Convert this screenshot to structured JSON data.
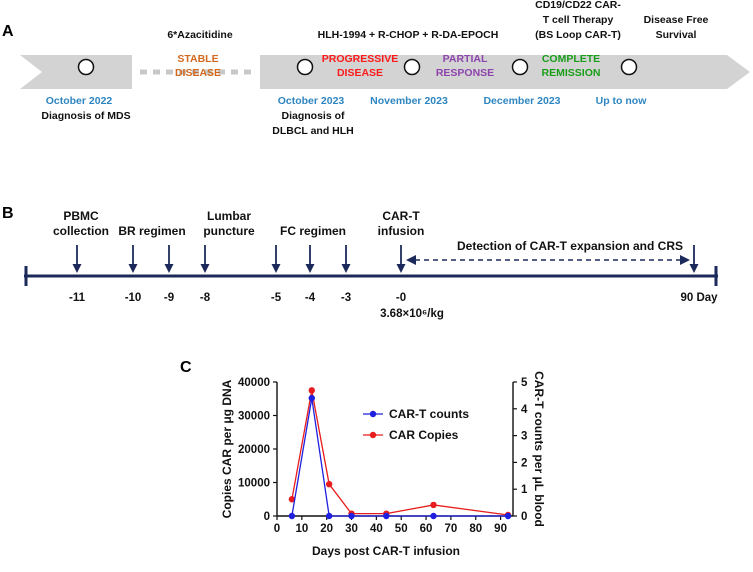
{
  "panel_a": {
    "label": "A",
    "segments": [
      {
        "label": "6*Azacitidine",
        "status_lines": [
          "STABLE",
          "DISEASE"
        ],
        "status_color": "#d2691e"
      },
      {
        "label": "HLH-1994 + R-CHOP + R-DA-EPOCH",
        "status_lines": [
          "PROGRESSIVE",
          "DISEASE"
        ],
        "status_color": "#ff1a1a"
      },
      {
        "status_lines": [
          "PARTIAL",
          "RESPONSE"
        ],
        "status_color": "#8e44ad"
      },
      {
        "label_lines": [
          "CD19/CD22 CAR-",
          "T cell Therapy",
          "(BS Loop CAR-T)"
        ],
        "status_lines": [
          "COMPLETE",
          "REMISSION"
        ],
        "status_color": "#1a9e1a"
      },
      {
        "label_lines": [
          "Disease Free",
          "Survival"
        ]
      }
    ],
    "milestones": [
      {
        "date": "October 2022",
        "desc_lines": [
          "Diagnosis of MDS"
        ]
      },
      {
        "date": "October 2023",
        "desc_lines": [
          "Diagnosis of",
          "DLBCL and HLH"
        ]
      },
      {
        "date": "November 2023",
        "desc_lines": []
      },
      {
        "date": "December 2023",
        "desc_lines": []
      },
      {
        "date": "Up to now",
        "desc_lines": []
      }
    ],
    "date_color": "#2e86c1",
    "arrow_color": "#d3d3d3"
  },
  "panel_b": {
    "label": "B",
    "events": [
      {
        "label_lines": [
          "PBMC",
          "collection"
        ],
        "day": "-11"
      },
      {
        "label_lines": [
          "BR regimen"
        ],
        "day": "-10"
      },
      {
        "label_lines": [],
        "day": "-9"
      },
      {
        "label_lines": [
          "Lumbar",
          "puncture"
        ],
        "day": "-8"
      },
      {
        "label_lines": [],
        "day": "-5"
      },
      {
        "label_lines": [
          "FC regimen"
        ],
        "day": "-4"
      },
      {
        "label_lines": [],
        "day": "-3"
      },
      {
        "label_lines": [
          "CAR-T",
          "infusion"
        ],
        "day": "-0"
      }
    ],
    "dose": "3.68×10⁶/kg",
    "detection_label": "Detection of CAR-T expansion and CRS",
    "end_label": "90 Day",
    "line_color": "#1b2a5a"
  },
  "chart_data": {
    "label": "C",
    "type": "line",
    "xlabel": "Days post CAR-T infusion",
    "ylabel": "Copies CAR per μg  DNA",
    "y2label": "CAR-T counts per μL blood",
    "xlim": [
      0,
      95
    ],
    "xticks": [
      0,
      10,
      20,
      30,
      40,
      50,
      60,
      70,
      80,
      90
    ],
    "ylim": [
      0,
      40000
    ],
    "yticks": [
      0,
      10000,
      20000,
      30000,
      40000
    ],
    "y2lim": [
      0,
      5
    ],
    "y2ticks": [
      0,
      1,
      2,
      3,
      4,
      5
    ],
    "legend_position": "right",
    "series": [
      {
        "name": "CAR-T counts",
        "axis": "right",
        "color": "#1f1fe0",
        "x": [
          6,
          14,
          21,
          30,
          44,
          63,
          93
        ],
        "y": [
          0,
          4.4,
          0,
          0,
          0,
          0,
          0
        ]
      },
      {
        "name": "CAR Copies",
        "axis": "left",
        "color": "#e81c1c",
        "x": [
          6,
          14,
          21,
          30,
          44,
          63,
          93
        ],
        "y": [
          5000,
          37500,
          9500,
          700,
          700,
          3300,
          300
        ]
      }
    ]
  }
}
